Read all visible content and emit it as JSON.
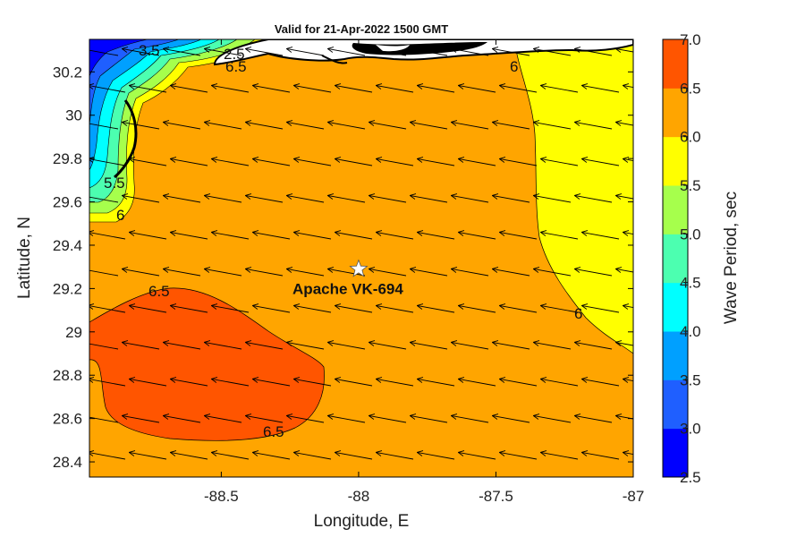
{
  "title": "Valid for 21-Apr-2022 1500 GMT",
  "colors": {
    "ramp": [
      "#0000ff",
      "#1f5fff",
      "#00a0ff",
      "#00ffff",
      "#4cffb0",
      "#a6ff4c",
      "#ffff00",
      "#ffa500",
      "#ff5500"
    ],
    "land": "#ffffff",
    "outline": "#000000"
  },
  "chart_data": {
    "type": "heatmap",
    "subtype": "filled contour map with wind/wave direction vectors",
    "xlabel": "Longitude, E",
    "ylabel": "Latitude, N",
    "xlim": [
      -88.98,
      -87.0
    ],
    "ylim": [
      28.33,
      30.35
    ],
    "xticks": [
      "-88.5",
      "-88",
      "-87.5",
      "-87"
    ],
    "xtick_values": [
      -88.5,
      -88.0,
      -87.5,
      -87.0
    ],
    "yticks": [
      "28.4",
      "28.6",
      "28.8",
      "29",
      "29.2",
      "29.4",
      "29.6",
      "29.8",
      "30",
      "30.2"
    ],
    "ytick_values": [
      28.4,
      28.6,
      28.8,
      29.0,
      29.2,
      29.4,
      29.6,
      29.8,
      30.0,
      30.2
    ],
    "colorbar": {
      "label": "Wave Period, sec",
      "min": 2.5,
      "max": 7.0,
      "ticks": [
        "2.5",
        "3.0",
        "3.5",
        "4.0",
        "4.5",
        "5.0",
        "5.5",
        "6.0",
        "6.5",
        "7.0"
      ]
    },
    "contour_labels": [
      "6.5",
      "6.5",
      "6",
      "6",
      "6",
      "3.5",
      "2.5",
      "6.5",
      "5.5"
    ],
    "regions": [
      {
        "period_range": [
          6.5,
          7.0
        ],
        "description": "southwest area"
      },
      {
        "period_range": [
          6.0,
          6.5
        ],
        "description": "most of the domain"
      },
      {
        "period_range": [
          5.5,
          6.0
        ],
        "description": "eastern area"
      },
      {
        "period_range": [
          2.5,
          5.5
        ],
        "description": "coastal northwest"
      }
    ],
    "vector_direction": "toward west-northwest",
    "site": {
      "name": "Apache VK-694",
      "lon": -88.0,
      "lat": 29.29,
      "marker": "star"
    }
  }
}
